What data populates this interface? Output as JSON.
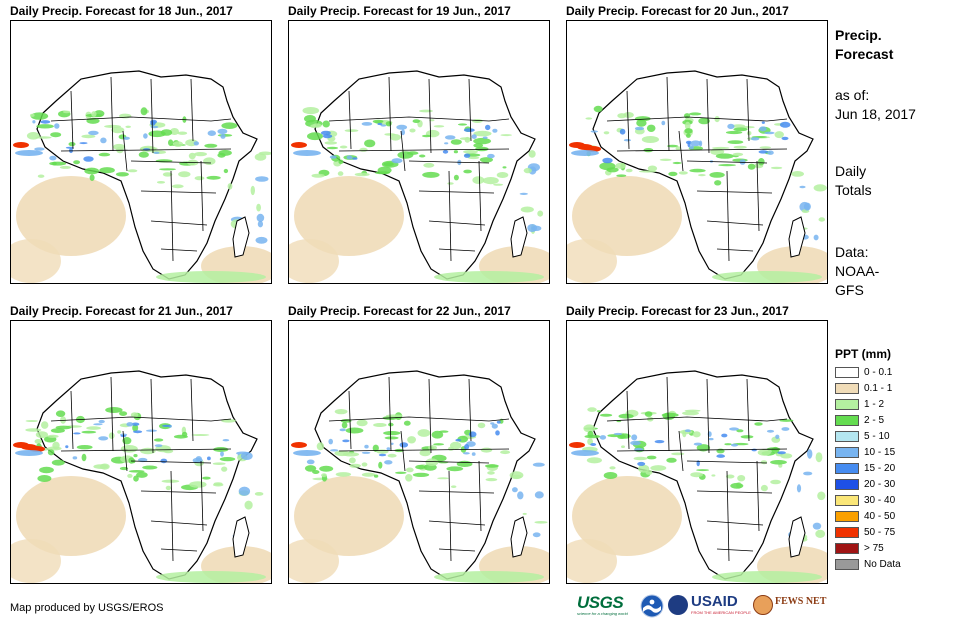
{
  "panels": [
    {
      "title": "Daily Precip. Forecast for 18 Jun., 2017"
    },
    {
      "title": "Daily Precip. Forecast for 19 Jun., 2017"
    },
    {
      "title": "Daily Precip. Forecast for 20 Jun., 2017"
    },
    {
      "title": "Daily Precip. Forecast for 21 Jun., 2017"
    },
    {
      "title": "Daily Precip. Forecast for 22 Jun., 2017"
    },
    {
      "title": "Daily Precip. Forecast for 23 Jun., 2017"
    }
  ],
  "sidebar": {
    "title_line1": "Precip.",
    "title_line2": "Forecast",
    "asof_label": "as of:",
    "asof_date": "Jun 18, 2017",
    "totals_line1": "Daily",
    "totals_line2": "Totals",
    "data_line1": "Data:",
    "data_line2": "NOAA-",
    "data_line3": "GFS"
  },
  "legend": {
    "title": "PPT (mm)",
    "items": [
      {
        "label": "0 - 0.1",
        "color": "#ffffff"
      },
      {
        "label": "0.1 - 1",
        "color": "#f0dcb8"
      },
      {
        "label": "1 - 2",
        "color": "#b4f0a0"
      },
      {
        "label": "2 - 5",
        "color": "#64dc50"
      },
      {
        "label": "5 - 10",
        "color": "#b4e6f0"
      },
      {
        "label": "10 - 15",
        "color": "#78b4f0"
      },
      {
        "label": "15 - 20",
        "color": "#468cf0"
      },
      {
        "label": "20 - 30",
        "color": "#1e50e6"
      },
      {
        "label": "30 - 40",
        "color": "#fae678"
      },
      {
        "label": "40 - 50",
        "color": "#faa000"
      },
      {
        "label": "50 - 75",
        "color": "#f03200"
      },
      {
        "label": "> 75",
        "color": "#a01414"
      },
      {
        "label": "No Data",
        "color": "#999999"
      }
    ]
  },
  "credit": "Map produced by USGS/EROS",
  "logos": {
    "usgs": "USGS",
    "usgs_tag": "science for a changing world",
    "noaa": "NOAA",
    "usaid": "USAID",
    "usaid_tag": "FROM THE AMERICAN PEOPLE",
    "fewsnet": "FEWS NET"
  }
}
